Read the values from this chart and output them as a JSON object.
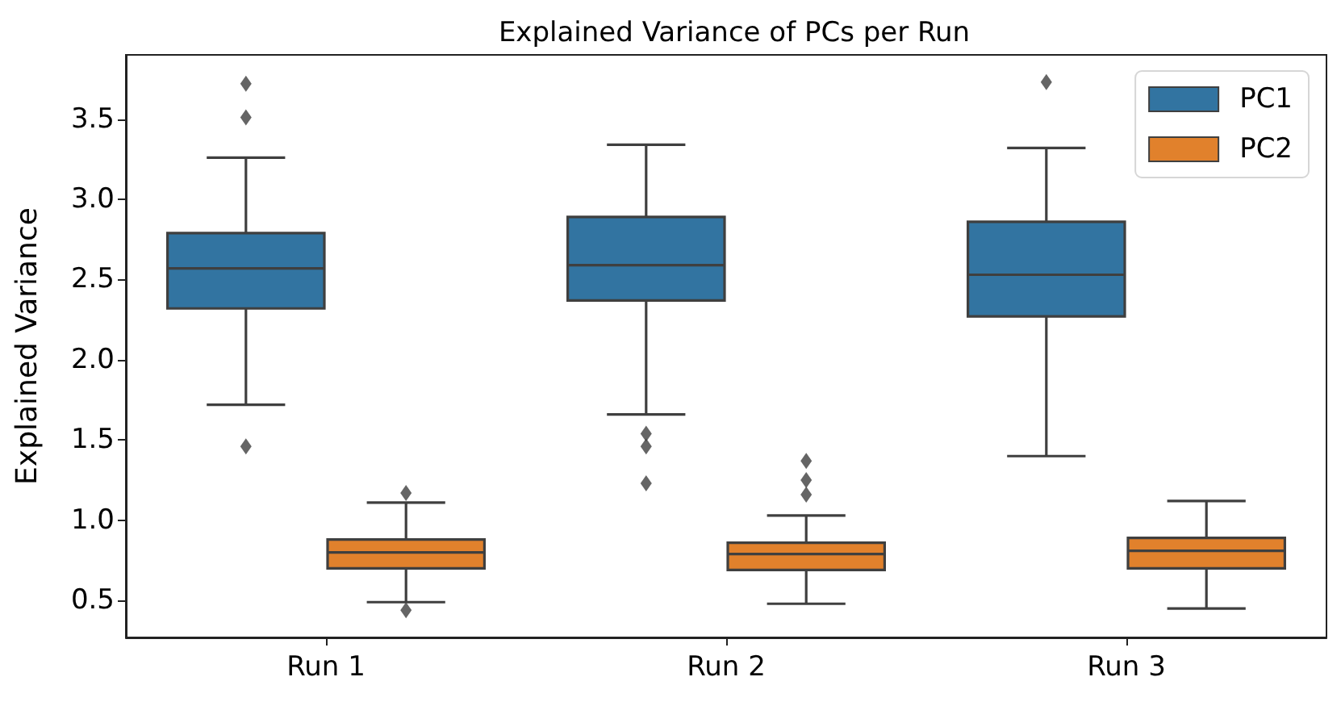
{
  "chart_data": {
    "type": "box",
    "title": "Explained Variance of PCs per Run",
    "ylabel": "Explained Variance",
    "categories": [
      "Run 1",
      "Run 2",
      "Run 3"
    ],
    "series": [
      {
        "name": "PC1",
        "color": "#3274a1",
        "boxes": [
          {
            "low": 1.72,
            "q1": 2.32,
            "median": 2.57,
            "q3": 2.79,
            "high": 3.26,
            "outliers": [
              3.72,
              3.51,
              1.46
            ]
          },
          {
            "low": 1.66,
            "q1": 2.37,
            "median": 2.59,
            "q3": 2.89,
            "high": 3.34,
            "outliers": [
              1.54,
              1.46,
              1.23
            ]
          },
          {
            "low": 1.4,
            "q1": 2.27,
            "median": 2.53,
            "q3": 2.86,
            "high": 3.32,
            "outliers": [
              3.73
            ]
          }
        ]
      },
      {
        "name": "PC2",
        "color": "#e1812c",
        "boxes": [
          {
            "low": 0.49,
            "q1": 0.7,
            "median": 0.8,
            "q3": 0.88,
            "high": 1.11,
            "outliers": [
              1.17,
              0.44
            ]
          },
          {
            "low": 0.48,
            "q1": 0.69,
            "median": 0.79,
            "q3": 0.86,
            "high": 1.03,
            "outliers": [
              1.37,
              1.25,
              1.16
            ]
          },
          {
            "low": 0.45,
            "q1": 0.7,
            "median": 0.81,
            "q3": 0.89,
            "high": 1.12
          }
        ]
      }
    ],
    "ylim": [
      0.27,
      3.9
    ],
    "yticks": [
      0.5,
      {
        "value": 1,
        "label": "1.0"
      },
      1.5,
      {
        "value": 2,
        "label": "2.0"
      },
      2.5,
      {
        "value": 3,
        "label": "3.0"
      },
      3.5
    ],
    "legend": "top right",
    "marker": "diamond"
  }
}
